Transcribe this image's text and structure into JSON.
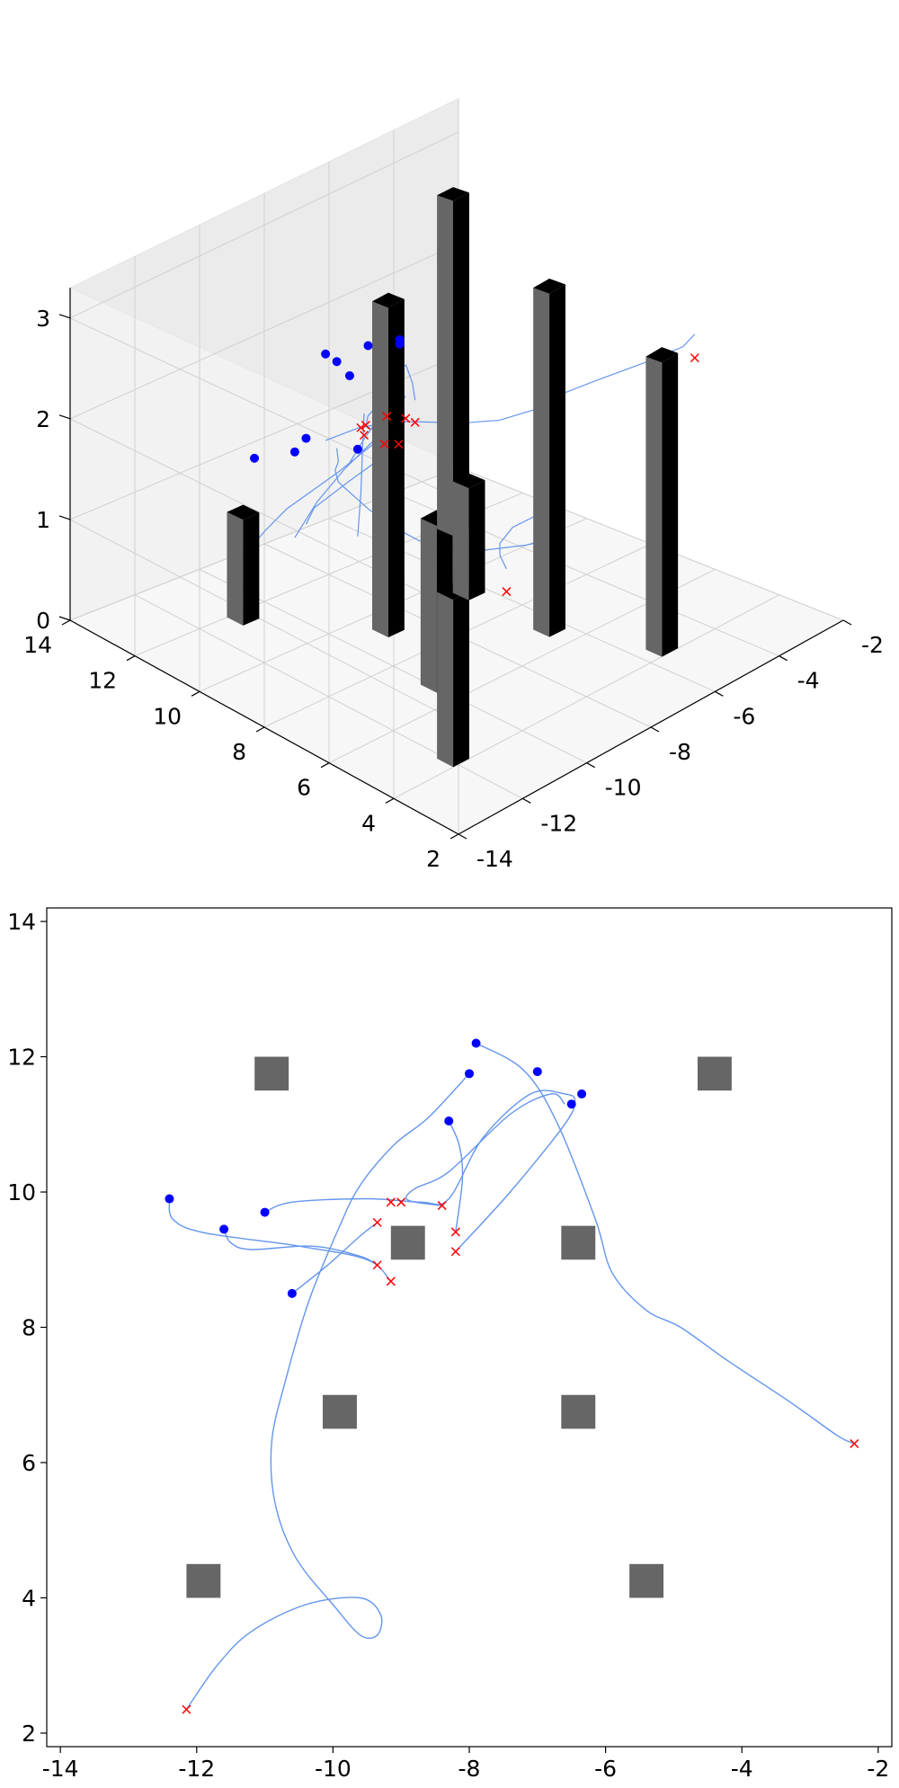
{
  "chart_data": [
    {
      "type": "scatter",
      "view": "3d",
      "projection": "3d perspective, elev 30, azim 45",
      "grid": true,
      "xlim": [
        -14,
        -2
      ],
      "ylim": [
        2,
        14
      ],
      "zlim": [
        0,
        3
      ],
      "x_ticks": [
        "-14",
        "-12",
        "-10",
        "-8",
        "-6",
        "-4",
        "-2"
      ],
      "y_ticks": [
        "14",
        "12",
        "10",
        "8",
        "6",
        "4",
        "2"
      ],
      "z_ticks": [
        "0",
        "1",
        "2",
        "3"
      ],
      "obstacles_note": "dark gray vertical pillars",
      "obstacle_color": "#666666",
      "obstacle_dark_color": "#000000",
      "start_color": "#0000ff",
      "goal_color": "#ff0000",
      "path_color": "#6495ed"
    },
    {
      "type": "scatter",
      "view": "top-down",
      "grid": false,
      "xlim": [
        -14.2,
        -1.8
      ],
      "ylim": [
        1.8,
        14.2
      ],
      "x_ticks": [
        "-14",
        "-12",
        "-10",
        "-8",
        "-6",
        "-4",
        "-2"
      ],
      "y_ticks": [
        "2",
        "4",
        "6",
        "8",
        "10",
        "12",
        "14"
      ],
      "obstacles": [
        {
          "x": -10.9,
          "y": 11.75
        },
        {
          "x": -4.4,
          "y": 11.75
        },
        {
          "x": -8.9,
          "y": 9.25
        },
        {
          "x": -6.4,
          "y": 9.25
        },
        {
          "x": -9.9,
          "y": 6.75
        },
        {
          "x": -6.4,
          "y": 6.75
        },
        {
          "x": -11.9,
          "y": 4.25
        },
        {
          "x": -5.4,
          "y": 4.25
        }
      ],
      "obstacle_size": 0.5,
      "obstacle_color": "#666666",
      "start_color": "#0000ff",
      "goal_color": "#ff0000",
      "path_color": "#6495ed",
      "trajectories": [
        {
          "points": [
            [
              -7.9,
              12.2
            ],
            [
              -7.2,
              11.8
            ],
            [
              -6.7,
              11.0
            ],
            [
              -6.15,
              9.6
            ],
            [
              -5.9,
              8.8
            ],
            [
              -5.4,
              8.25
            ],
            [
              -4.9,
              8.0
            ],
            [
              -4.2,
              7.5
            ],
            [
              -3.3,
              6.9
            ],
            [
              -2.6,
              6.4
            ],
            [
              -2.35,
              6.28
            ]
          ]
        },
        {
          "points": [
            [
              -11.0,
              9.7
            ],
            [
              -10.6,
              9.85
            ],
            [
              -9.5,
              9.9
            ],
            [
              -8.7,
              9.85
            ],
            [
              -8.3,
              9.9
            ],
            [
              -7.8,
              10.8
            ],
            [
              -7.1,
              11.45
            ],
            [
              -6.6,
              11.45
            ],
            [
              -6.45,
              11.35
            ],
            [
              -6.6,
              11.0
            ],
            [
              -7.4,
              10.0
            ],
            [
              -8.2,
              9.12
            ]
          ]
        },
        {
          "points": [
            [
              -12.4,
              9.9
            ],
            [
              -12.35,
              9.6
            ],
            [
              -11.9,
              9.4
            ],
            [
              -10.5,
              9.2
            ],
            [
              -9.5,
              9.0
            ],
            [
              -9.15,
              8.68
            ]
          ]
        },
        {
          "points": [
            [
              -11.6,
              9.45
            ],
            [
              -11.5,
              9.25
            ],
            [
              -11.2,
              9.15
            ],
            [
              -10.3,
              9.2
            ],
            [
              -9.6,
              9.05
            ],
            [
              -9.35,
              8.92
            ]
          ]
        },
        {
          "points": [
            [
              -10.6,
              8.5
            ],
            [
              -10.1,
              8.9
            ],
            [
              -9.6,
              9.35
            ],
            [
              -9.35,
              9.55
            ]
          ]
        },
        {
          "points": [
            [
              -8.3,
              11.05
            ],
            [
              -8.15,
              10.7
            ],
            [
              -8.1,
              10.2
            ],
            [
              -8.2,
              9.41
            ]
          ]
        },
        {
          "points": [
            [
              -8.0,
              11.75
            ],
            [
              -8.6,
              11.1
            ],
            [
              -9.1,
              10.7
            ],
            [
              -9.6,
              10.1
            ],
            [
              -9.9,
              9.5
            ],
            [
              -10.35,
              8.4
            ],
            [
              -10.7,
              7.2
            ],
            [
              -10.9,
              6.3
            ],
            [
              -10.85,
              5.4
            ],
            [
              -10.55,
              4.6
            ],
            [
              -10.0,
              3.9
            ],
            [
              -9.6,
              3.45
            ],
            [
              -9.35,
              3.45
            ],
            [
              -9.3,
              3.75
            ],
            [
              -9.6,
              4.0
            ],
            [
              -10.4,
              3.9
            ],
            [
              -11.2,
              3.5
            ],
            [
              -11.7,
              3.0
            ],
            [
              -12.15,
              2.35
            ]
          ]
        },
        {
          "points": [
            [
              -6.6,
              11.3
            ],
            [
              -6.8,
              11.45
            ],
            [
              -7.4,
              11.15
            ],
            [
              -8.3,
              10.3
            ],
            [
              -8.8,
              10.05
            ],
            [
              -8.9,
              9.88
            ],
            [
              -8.4,
              9.8
            ]
          ]
        }
      ],
      "starts": [
        [
          -7.9,
          12.2
        ],
        [
          -8.0,
          11.75
        ],
        [
          -7.0,
          11.78
        ],
        [
          -6.5,
          11.3
        ],
        [
          -6.35,
          11.45
        ],
        [
          -8.3,
          11.05
        ],
        [
          -12.4,
          9.9
        ],
        [
          -11.6,
          9.45
        ],
        [
          -11.0,
          9.7
        ],
        [
          -10.6,
          8.5
        ]
      ],
      "goals": [
        [
          -2.35,
          6.28
        ],
        [
          -12.15,
          2.35
        ],
        [
          -9.15,
          9.85
        ],
        [
          -9.0,
          9.85
        ],
        [
          -8.4,
          9.8
        ],
        [
          -9.35,
          9.55
        ],
        [
          -8.2,
          9.41
        ],
        [
          -8.2,
          9.12
        ],
        [
          -9.35,
          8.92
        ],
        [
          -9.15,
          8.68
        ]
      ]
    }
  ]
}
